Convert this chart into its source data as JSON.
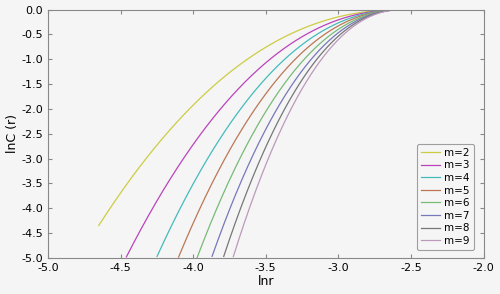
{
  "title": "",
  "xlabel": "lnr",
  "ylabel": "lnC (r)",
  "xlim": [
    -5.0,
    -2.0
  ],
  "ylim": [
    -5.0,
    0.0
  ],
  "xticks": [
    -5.0,
    -4.5,
    -4.0,
    -3.5,
    -3.0,
    -2.5,
    -2.0
  ],
  "yticks": [
    0.0,
    -0.5,
    -1.0,
    -1.5,
    -2.0,
    -2.5,
    -3.0,
    -3.5,
    -4.0,
    -4.5,
    -5.0
  ],
  "series": [
    {
      "m": 2,
      "color": "#cccc44",
      "x_start": -4.65,
      "x_end": -2.55,
      "slope": 0.85
    },
    {
      "m": 3,
      "color": "#bb44bb",
      "x_start": -4.55,
      "x_end": -2.55,
      "slope": 1.2
    },
    {
      "m": 4,
      "color": "#44bbbb",
      "x_start": -4.47,
      "x_end": -2.55,
      "slope": 1.55
    },
    {
      "m": 5,
      "color": "#bb7755",
      "x_start": -4.38,
      "x_end": -2.55,
      "slope": 1.9
    },
    {
      "m": 6,
      "color": "#77bb77",
      "x_start": -4.25,
      "x_end": -2.55,
      "slope": 2.3
    },
    {
      "m": 7,
      "color": "#7777bb",
      "x_start": -4.18,
      "x_end": -2.55,
      "slope": 2.7
    },
    {
      "m": 8,
      "color": "#777777",
      "x_start": -4.13,
      "x_end": -2.55,
      "slope": 3.1
    },
    {
      "m": 9,
      "color": "#bb99bb",
      "x_start": -4.08,
      "x_end": -2.55,
      "slope": 3.5
    }
  ],
  "x_conv": -2.55,
  "y_conv": 0.0,
  "alpha": 2.2,
  "background_color": "#f5f5f5"
}
